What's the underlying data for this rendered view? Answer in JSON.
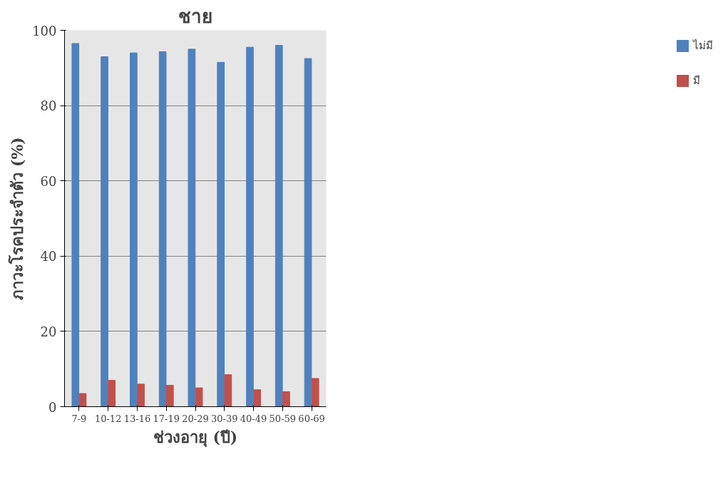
{
  "chart_data": {
    "type": "bar",
    "title": "ชาย",
    "xlabel": "ช่วงอายุ (ปี)",
    "ylabel": "ภาวะโรคประจำตัว (%)",
    "categories": [
      "7-9",
      "10-12",
      "13-16",
      "17-19",
      "20-29",
      "30-39",
      "40-49",
      "50-59",
      "60-69"
    ],
    "series": [
      {
        "name": "ไม่มี",
        "color": "#4f81bd",
        "values": [
          96.5,
          93,
          94,
          94.3,
          95,
          91.5,
          95.5,
          96,
          92.5
        ]
      },
      {
        "name": "มี",
        "color": "#c0504d",
        "values": [
          3.5,
          7,
          6,
          5.7,
          5,
          8.5,
          4.5,
          4,
          7.5
        ]
      }
    ],
    "ylim": [
      0,
      100
    ],
    "yticks": [
      0,
      20,
      40,
      60,
      80,
      100
    ],
    "grid": "y",
    "legend": "right"
  }
}
